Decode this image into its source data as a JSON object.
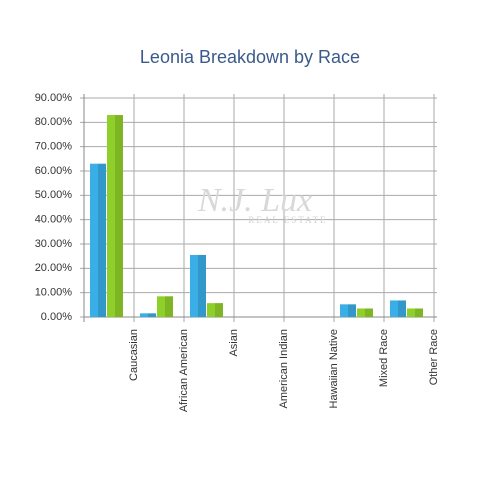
{
  "chart_data": {
    "type": "bar",
    "title": "Leonia Breakdown by Race",
    "categories": [
      "Caucasian",
      "African American",
      "Asian",
      "American Indian",
      "Hawaiian Native",
      "Mixed Race",
      "Other Race"
    ],
    "series": [
      {
        "color": "#3aaee6",
        "values": [
          63,
          1.5,
          25.5,
          0,
          0,
          5.2,
          6.8
        ]
      },
      {
        "color": "#8fcf2a",
        "values": [
          83,
          8.5,
          5.7,
          0,
          0,
          3.5,
          3.5
        ]
      }
    ],
    "ylim": [
      0,
      90
    ],
    "yticks": [
      {
        "value": 0,
        "label": "0.00%"
      },
      {
        "value": 10,
        "label": "10.00%"
      },
      {
        "value": 20,
        "label": "20.00%"
      },
      {
        "value": 30,
        "label": "30.00%"
      },
      {
        "value": 40,
        "label": "40.00%"
      },
      {
        "value": 50,
        "label": "50.00%"
      },
      {
        "value": 60,
        "label": "60.00%"
      },
      {
        "value": 70,
        "label": "70.00%"
      },
      {
        "value": 80,
        "label": "80.00%"
      },
      {
        "value": 90,
        "label": "90.00%"
      }
    ],
    "grid": true
  },
  "watermark": {
    "name": "N.J. Lux",
    "tagline": "REAL ESTATE"
  }
}
